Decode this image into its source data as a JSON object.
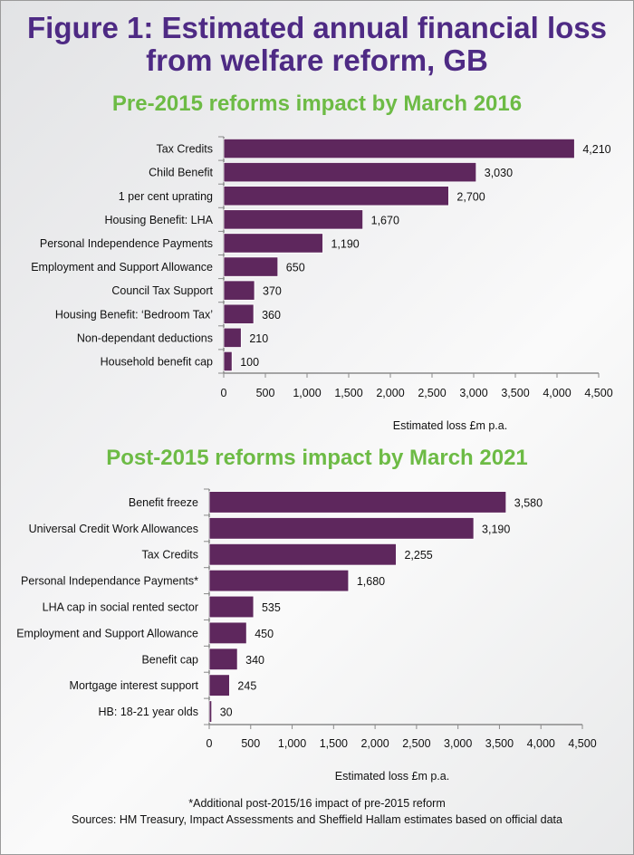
{
  "title": "Figure 1: Estimated annual financial loss from welfare reform, GB",
  "title_lines": [
    "Figure 1: Estimated annual financial loss",
    "from welfare reform, GB"
  ],
  "colors": {
    "bar": "#5e275d",
    "title": "#4e2a84",
    "subtitle": "#6dbb45"
  },
  "chart_data": [
    {
      "type": "bar",
      "orientation": "horizontal",
      "title": "Pre-2015 reforms impact by March 2016",
      "categories": [
        "Tax Credits",
        "Child Benefit",
        "1 per cent uprating",
        "Housing Benefit: LHA",
        "Personal Independence Payments",
        "Employment and Support Allowance",
        "Council Tax Support",
        "Housing Benefit: ‘Bedroom Tax’",
        "Non-dependant deductions",
        "Household benefit cap"
      ],
      "values": [
        4210,
        3030,
        2700,
        1670,
        1190,
        650,
        370,
        360,
        210,
        100
      ],
      "value_labels": [
        "4,210",
        "3,030",
        "2,700",
        "1,670",
        "1,190",
        "650",
        "370",
        "360",
        "210",
        "100"
      ],
      "xlabel": "Estimated loss £m p.a.",
      "xlim": [
        0,
        4500
      ],
      "xticks": [
        "0",
        "500",
        "1,000",
        "1,500",
        "2,000",
        "2,500",
        "3,000",
        "3,500",
        "4,000",
        "4,500"
      ],
      "grid": false
    },
    {
      "type": "bar",
      "orientation": "horizontal",
      "title": "Post-2015 reforms impact by March 2021",
      "categories": [
        "Benefit freeze",
        "Universal Credit Work Allowances",
        "Tax Credits",
        "Personal Independance Payments*",
        "LHA cap in social rented sector",
        "Employment and Support Allowance",
        "Benefit cap",
        "Mortgage interest support",
        "HB: 18-21 year olds"
      ],
      "values": [
        3580,
        3190,
        2255,
        1680,
        535,
        450,
        340,
        245,
        30
      ],
      "value_labels": [
        "3,580",
        "3,190",
        "2,255",
        "1,680",
        "535",
        "450",
        "340",
        "245",
        "30"
      ],
      "xlabel": "Estimated loss £m p.a.",
      "xlim": [
        0,
        4500
      ],
      "xticks": [
        "0",
        "500",
        "1,000",
        "1,500",
        "2,000",
        "2,500",
        "3,000",
        "3,500",
        "4,000",
        "4,500"
      ],
      "grid": false
    }
  ],
  "footnotes": [
    "*Additional post-2015/16 impact of pre-2015 reform",
    "Sources: HM Treasury, Impact Assessments and Sheffield Hallam estimates based on official data"
  ]
}
